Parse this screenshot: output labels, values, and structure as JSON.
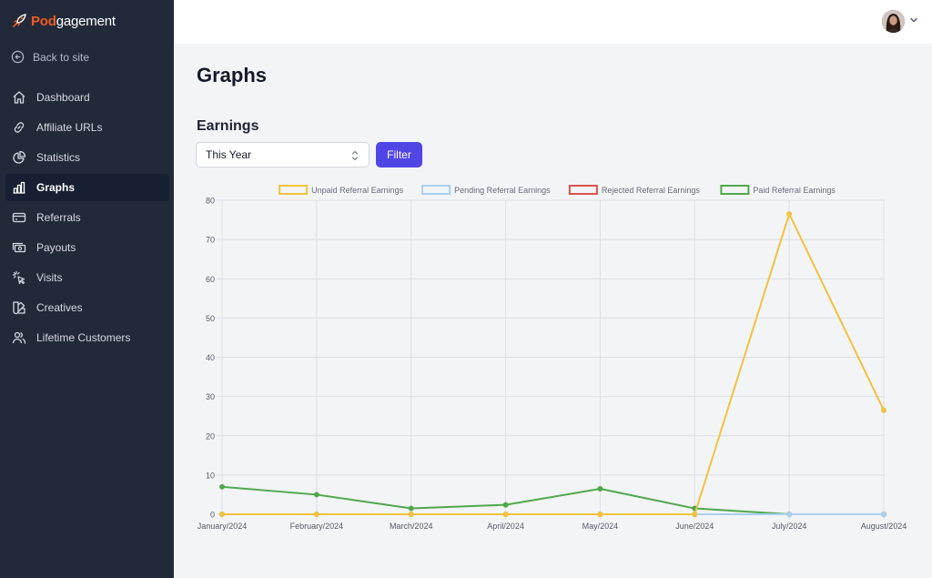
{
  "logo": {
    "part1": "Pod",
    "part2": "gagement"
  },
  "sidebar": {
    "back_label": "Back to site",
    "items": [
      {
        "label": "Dashboard",
        "icon": "home-icon"
      },
      {
        "label": "Affiliate URLs",
        "icon": "link-icon"
      },
      {
        "label": "Statistics",
        "icon": "pie-chart-icon"
      },
      {
        "label": "Graphs",
        "icon": "bar-chart-icon",
        "active": true
      },
      {
        "label": "Referrals",
        "icon": "credit-card-icon"
      },
      {
        "label": "Payouts",
        "icon": "cash-icon"
      },
      {
        "label": "Visits",
        "icon": "cursor-click-icon"
      },
      {
        "label": "Creatives",
        "icon": "swatch-icon"
      },
      {
        "label": "Lifetime Customers",
        "icon": "users-icon"
      }
    ]
  },
  "page": {
    "title": "Graphs",
    "section": "Earnings"
  },
  "filter": {
    "selected": "This Year",
    "button_label": "Filter"
  },
  "colors": {
    "sidebar": "#222a3a",
    "accent": "#5046e5",
    "brand": "#f05a24"
  },
  "chart_data": {
    "type": "line",
    "categories": [
      "January/2024",
      "February/2024",
      "March/2024",
      "April/2024",
      "May/2024",
      "June/2024",
      "July/2024",
      "August/2024"
    ],
    "ylim": [
      0,
      80
    ],
    "yticks": [
      0,
      10,
      20,
      30,
      40,
      50,
      60,
      70,
      80
    ],
    "grid": true,
    "legend_position": "top",
    "series": [
      {
        "name": "Unpaid Referral Earnings",
        "color": "#f2c23f",
        "values": [
          0,
          0,
          0,
          0,
          0,
          0,
          76.5,
          26.5
        ]
      },
      {
        "name": "Pending Referral Earnings",
        "color": "#a8d0f0",
        "values": [
          0,
          0,
          0,
          0,
          0,
          0,
          0,
          0
        ]
      },
      {
        "name": "Rejected Referral Earnings",
        "color": "#d9534f",
        "values": [
          0,
          0,
          0,
          0,
          0,
          0,
          0,
          0
        ]
      },
      {
        "name": "Paid Referral Earnings",
        "color": "#4fa84c",
        "values": [
          7,
          5,
          1.5,
          2.4,
          6.5,
          1.5,
          0,
          0
        ]
      }
    ]
  }
}
